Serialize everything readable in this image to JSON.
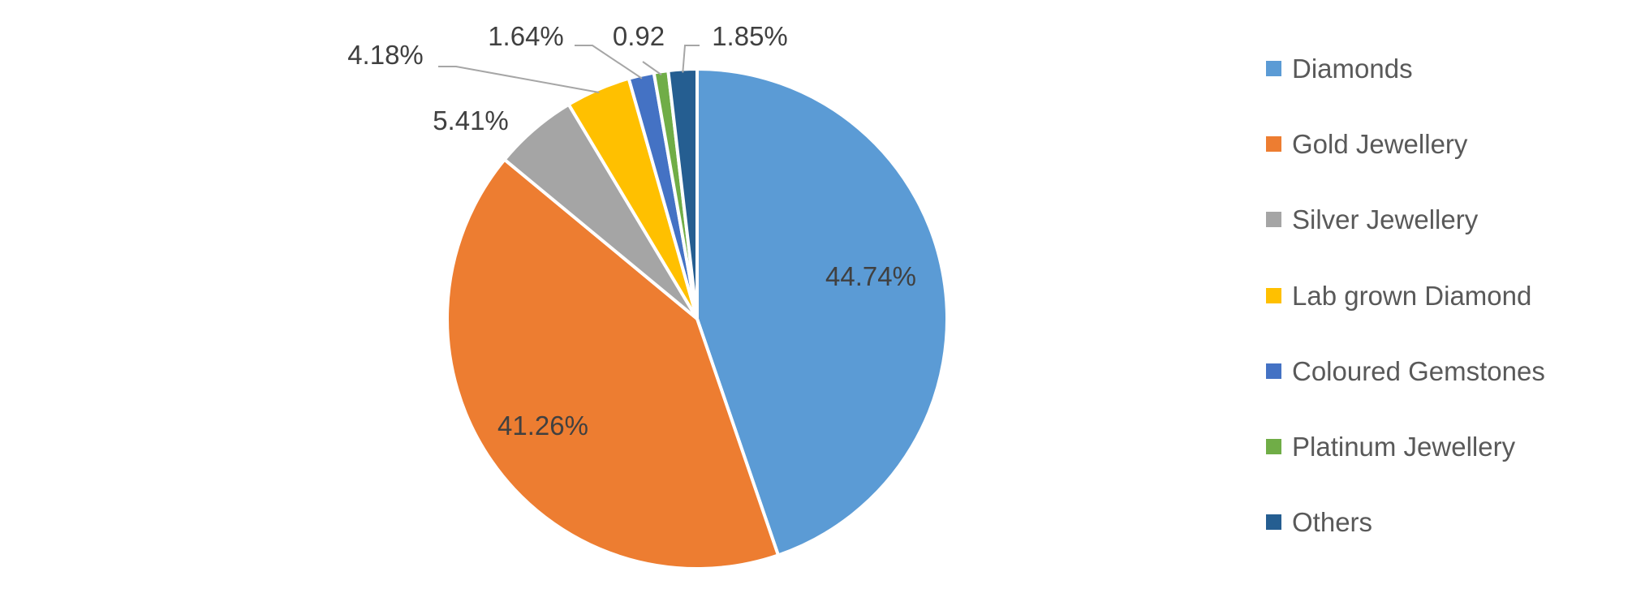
{
  "chart_data": {
    "type": "pie",
    "start_angle_deg": 0,
    "direction": "clockwise",
    "legend_position": "right",
    "slices": [
      {
        "label": "Diamonds",
        "value": 44.74,
        "display": "44.74%",
        "color": "#5B9BD5"
      },
      {
        "label": "Gold Jewellery",
        "value": 41.26,
        "display": "41.26%",
        "color": "#ED7D31"
      },
      {
        "label": "Silver Jewellery",
        "value": 5.41,
        "display": "5.41%",
        "color": "#A5A5A5"
      },
      {
        "label": "Lab grown Diamond",
        "value": 4.18,
        "display": "4.18%",
        "color": "#FFC000"
      },
      {
        "label": "Coloured Gemstones",
        "value": 1.64,
        "display": "1.64%",
        "color": "#4472C4"
      },
      {
        "label": "Platinum Jewellery",
        "value": 0.92,
        "display": "0.92",
        "color": "#70AD47"
      },
      {
        "label": "Others",
        "value": 1.85,
        "display": "1.85%",
        "color": "#255E91"
      }
    ]
  }
}
